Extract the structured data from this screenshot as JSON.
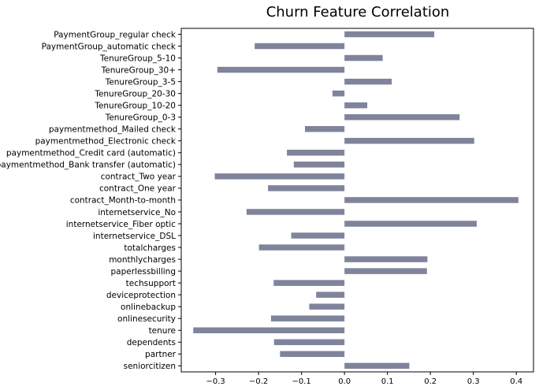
{
  "chart_data": {
    "type": "bar",
    "orientation": "horizontal",
    "title": "Churn Feature Correlation",
    "xlabel": "",
    "ylabel": "",
    "xlim": [
      -0.38,
      0.44
    ],
    "xticks": [
      -0.3,
      -0.2,
      -0.1,
      0.0,
      0.1,
      0.2,
      0.3,
      0.4
    ],
    "xtick_labels": [
      "−0.3",
      "−0.2",
      "−0.1",
      "0.0",
      "0.1",
      "0.2",
      "0.3",
      "0.4"
    ],
    "bar_color": "#7f849c",
    "grid": false,
    "categories": [
      "PaymentGroup_regular check",
      "PaymentGroup_automatic check",
      "TenureGroup_5-10",
      "TenureGroup_30+",
      "TenureGroup_3-5",
      "TenureGroup_20-30",
      "TenureGroup_10-20",
      "TenureGroup_0-3",
      "paymentmethod_Mailed check",
      "paymentmethod_Electronic check",
      "paymentmethod_Credit card (automatic)",
      "paymentmethod_Bank transfer (automatic)",
      "contract_Two year",
      "contract_One year",
      "contract_Month-to-month",
      "internetservice_No",
      "internetservice_Fiber optic",
      "internetservice_DSL",
      "totalcharges",
      "monthlycharges",
      "paperlessbilling",
      "techsupport",
      "deviceprotection",
      "onlinebackup",
      "onlinesecurity",
      "tenure",
      "dependents",
      "partner",
      "seniorcitizen"
    ],
    "values": [
      0.209,
      -0.209,
      0.089,
      -0.296,
      0.11,
      -0.028,
      0.053,
      0.268,
      -0.092,
      0.302,
      -0.134,
      -0.118,
      -0.302,
      -0.178,
      0.405,
      -0.228,
      0.308,
      -0.124,
      -0.199,
      0.193,
      0.192,
      -0.165,
      -0.066,
      -0.082,
      -0.171,
      -0.352,
      -0.164,
      -0.15,
      0.151
    ]
  }
}
